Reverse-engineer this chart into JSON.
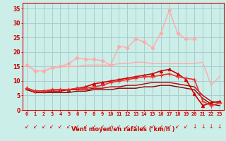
{
  "x": [
    0,
    1,
    2,
    3,
    4,
    5,
    6,
    7,
    8,
    9,
    10,
    11,
    12,
    13,
    14,
    15,
    16,
    17,
    18,
    19,
    20,
    21,
    22,
    23
  ],
  "series": [
    {
      "y": [
        15.5,
        13.5,
        13.5,
        14.5,
        15.0,
        15.0,
        15.0,
        15.5,
        15.5,
        15.5,
        15.5,
        16.0,
        16.0,
        16.5,
        16.5,
        16.0,
        16.0,
        16.0,
        16.0,
        16.0,
        16.0,
        16.5,
        8.5,
        11.5
      ],
      "color": "#ffaaaa",
      "marker": null,
      "lw": 1.0,
      "zorder": 2
    },
    {
      "y": [
        15.5,
        13.5,
        13.5,
        14.5,
        15.0,
        16.0,
        18.0,
        17.5,
        17.5,
        17.0,
        15.5,
        22.0,
        21.5,
        24.5,
        23.5,
        21.5,
        26.5,
        34.5,
        26.5,
        24.5,
        24.5,
        null,
        null,
        null
      ],
      "color": "#ffaaaa",
      "marker": "D",
      "markersize": 2.5,
      "lw": 1.0,
      "zorder": 3
    },
    {
      "y": [
        7.5,
        6.5,
        6.5,
        7.0,
        7.0,
        7.0,
        7.5,
        8.0,
        9.0,
        9.5,
        10.0,
        10.5,
        11.0,
        11.5,
        12.0,
        12.5,
        13.5,
        14.0,
        12.5,
        10.5,
        5.5,
        1.5,
        2.5,
        3.0
      ],
      "color": "#cc0000",
      "marker": "^",
      "markersize": 3,
      "lw": 1.2,
      "zorder": 4
    },
    {
      "y": [
        7.5,
        6.5,
        6.5,
        7.0,
        7.0,
        7.0,
        7.5,
        7.5,
        8.0,
        8.5,
        9.5,
        10.0,
        10.5,
        11.0,
        11.5,
        11.5,
        12.0,
        12.5,
        11.5,
        11.0,
        10.5,
        3.0,
        1.5,
        2.5
      ],
      "color": "#ee3333",
      "marker": "+",
      "markersize": 4,
      "lw": 1.2,
      "zorder": 5
    },
    {
      "y": [
        7.5,
        6.5,
        6.5,
        6.5,
        6.5,
        7.0,
        7.0,
        7.0,
        7.5,
        7.5,
        8.0,
        8.0,
        8.5,
        8.5,
        9.0,
        9.5,
        9.5,
        9.5,
        9.0,
        8.5,
        8.0,
        5.0,
        3.0,
        2.5
      ],
      "color": "#bb0000",
      "marker": null,
      "lw": 1.0,
      "zorder": 3
    },
    {
      "y": [
        7.0,
        6.0,
        6.0,
        6.0,
        6.0,
        6.0,
        6.5,
        6.5,
        7.0,
        7.0,
        7.0,
        7.5,
        7.5,
        7.5,
        8.0,
        8.0,
        8.5,
        8.5,
        8.0,
        7.5,
        7.0,
        4.0,
        2.0,
        1.5
      ],
      "color": "#880000",
      "marker": null,
      "lw": 1.0,
      "zorder": 2
    }
  ],
  "arrows_diagonal": [
    0,
    1,
    2,
    3,
    4,
    5,
    6,
    7,
    8,
    9,
    10,
    11,
    12,
    13,
    14,
    15,
    16,
    17,
    18,
    19
  ],
  "arrows_down": [
    20,
    21,
    22,
    23
  ],
  "xlabel": "Vent moyen/en rafales ( km/h )",
  "ylim": [
    0,
    37
  ],
  "xlim": [
    -0.5,
    23.5
  ],
  "yticks": [
    0,
    5,
    10,
    15,
    20,
    25,
    30,
    35
  ],
  "xticks": [
    0,
    1,
    2,
    3,
    4,
    5,
    6,
    7,
    8,
    9,
    10,
    11,
    12,
    13,
    14,
    15,
    16,
    17,
    18,
    19,
    20,
    21,
    22,
    23
  ],
  "bg_color": "#cceee8",
  "grid_color": "#aacccc",
  "text_color": "#cc0000",
  "arrow_color": "#cc0000"
}
